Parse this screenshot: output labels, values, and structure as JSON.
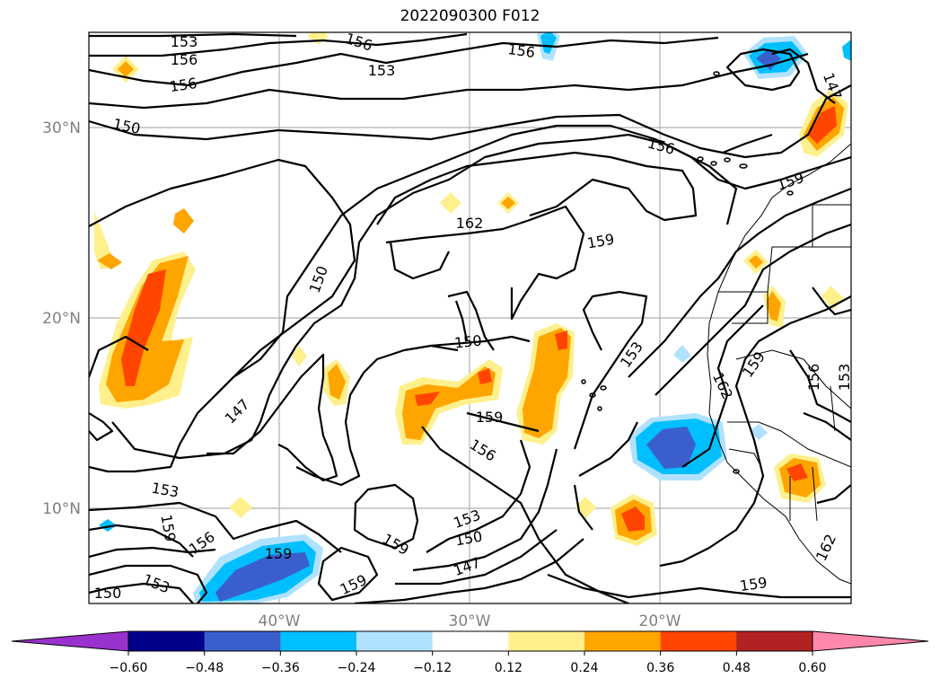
{
  "title": "2022090300 F012",
  "lat_labels": [
    "30°N",
    "20°N",
    "10°N"
  ],
  "lon_labels": [
    "40°W",
    "30°W",
    "20°W"
  ],
  "contour_labels": {
    "c153_a": "153",
    "c156_a": "156",
    "c156_b": "156",
    "c156_c": "156",
    "c153_b": "153",
    "c156_d": "156",
    "c147_a": "147",
    "c150_a": "150",
    "c156_e": "156",
    "c159_a": "159",
    "c162_a": "162",
    "c159_b": "159",
    "c150_b": "150",
    "c150_c": "150",
    "c153_c": "153",
    "c159_c": "159",
    "c147_b": "147",
    "c156_f": "156",
    "c159_d": "159",
    "c153_d": "153",
    "c159_e": "159",
    "c156_g": "156",
    "c159_f": "159",
    "c153_e": "153",
    "c150_d": "150",
    "c147_c": "147",
    "c159_g": "159",
    "c153_f": "153",
    "c159_h": "159",
    "c150_e": "150",
    "c162_b": "162",
    "c159_i": "159",
    "c162_c": "162",
    "c156_h": "156",
    "c153_g": "153",
    "c159_j": "159"
  },
  "colorbar": {
    "ticks": [
      "−0.60",
      "−0.48",
      "−0.36",
      "−0.24",
      "−0.12",
      "0.12",
      "0.24",
      "0.36",
      "0.48",
      "0.60"
    ],
    "colors": [
      "#9932cc",
      "#00008b",
      "#3a5fcd",
      "#00bfff",
      "#b0e2ff",
      "#ffffff",
      "#fff08c",
      "#ffa500",
      "#ff4500",
      "#b22222",
      "#ff88aa"
    ]
  }
}
